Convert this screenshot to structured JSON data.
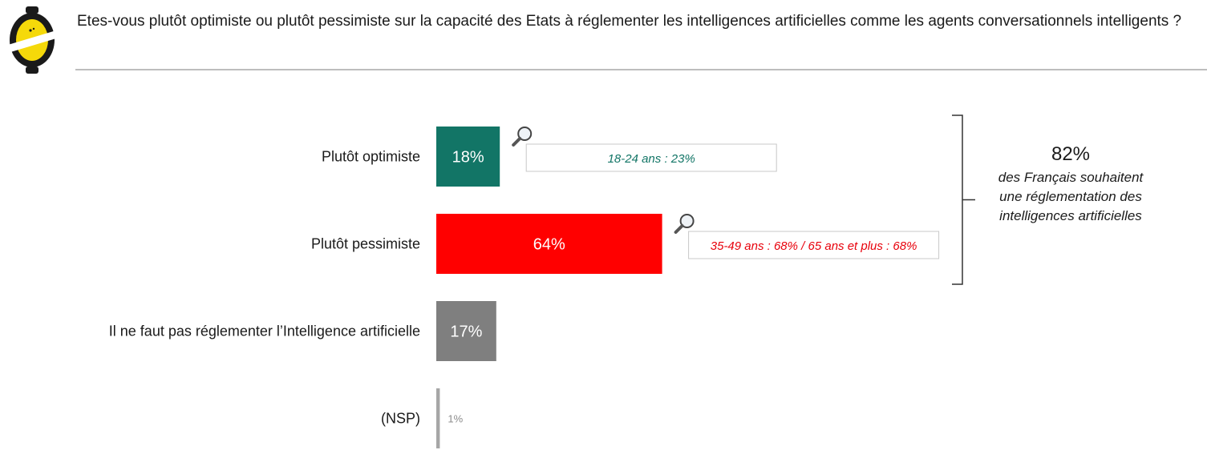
{
  "header": {
    "question": "Etes-vous plutôt optimiste ou plutôt pessimiste sur la capacité des Etats à réglementer les intelligences artificielles comme les agents conversationnels intelligents ?"
  },
  "logo": {
    "icon": "lemon-logo-icon"
  },
  "chart_data": {
    "type": "bar",
    "orientation": "horizontal",
    "categories": [
      "Plutôt optimiste",
      "Plutôt pessimiste",
      "Il ne faut pas réglementer l’Intelligence artificielle",
      "(NSP)"
    ],
    "values": [
      18,
      64,
      17,
      1
    ],
    "value_labels": [
      "18%",
      "64%",
      "17%",
      "1%"
    ],
    "colors": [
      "#127566",
      "#ff0000",
      "#7f7f7f",
      "#a6a6a6"
    ],
    "xlim": [
      0,
      100
    ],
    "grid": false,
    "callouts": [
      {
        "category_index": 0,
        "text": "18-24 ans : 23%",
        "color": "#127566",
        "icon": "magnifier-icon"
      },
      {
        "category_index": 1,
        "text": "35-49 ans : 68% / 65 ans et plus : 68%",
        "color": "#e8000b",
        "icon": "magnifier-icon"
      }
    ],
    "summary": {
      "value": "82%",
      "lines": [
        "des Français souhaitent",
        "une réglementation des",
        "intelligences artificielles"
      ],
      "spans_categories": [
        0,
        1
      ]
    }
  }
}
